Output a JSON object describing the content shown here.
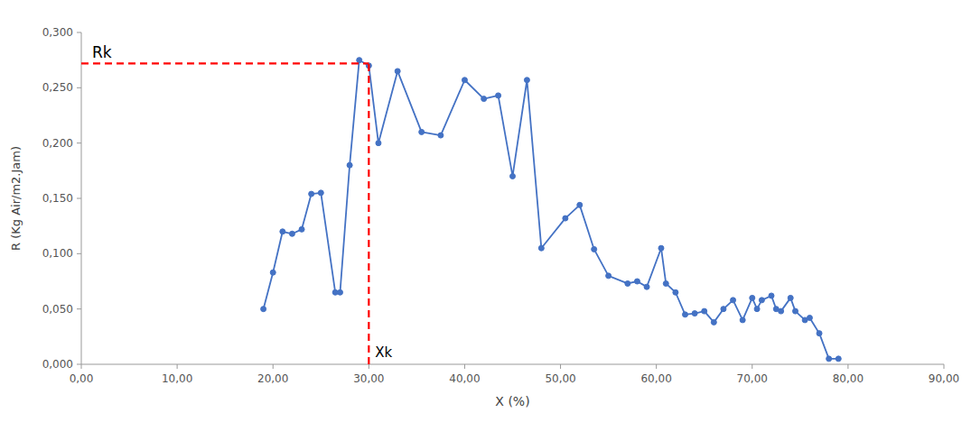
{
  "chart_data": {
    "type": "line",
    "x": [
      19.0,
      20.0,
      21.0,
      22.0,
      23.0,
      24.0,
      25.0,
      26.5,
      27.0,
      28.0,
      29.0,
      30.0,
      31.0,
      33.0,
      35.5,
      37.5,
      40.0,
      42.0,
      43.5,
      45.0,
      46.5,
      48.0,
      50.5,
      52.0,
      53.5,
      55.0,
      57.0,
      58.0,
      59.0,
      60.5,
      61.0,
      62.0,
      63.0,
      64.0,
      65.0,
      66.0,
      67.0,
      68.0,
      69.0,
      70.0,
      70.5,
      71.0,
      72.0,
      72.5,
      73.0,
      74.0,
      74.5,
      75.5,
      76.0,
      77.0,
      78.0,
      79.0
    ],
    "series": [
      {
        "color": "#4472C4",
        "marker": "circle",
        "line_style": "solid",
        "values": [
          0.05,
          0.083,
          0.12,
          0.118,
          0.122,
          0.154,
          0.155,
          0.065,
          0.065,
          0.18,
          0.275,
          0.27,
          0.2,
          0.265,
          0.21,
          0.207,
          0.257,
          0.24,
          0.243,
          0.17,
          0.257,
          0.105,
          0.132,
          0.144,
          0.104,
          0.08,
          0.073,
          0.075,
          0.07,
          0.105,
          0.073,
          0.065,
          0.045,
          0.046,
          0.048,
          0.038,
          0.05,
          0.058,
          0.04,
          0.06,
          0.05,
          0.058,
          0.062,
          0.05,
          0.048,
          0.06,
          0.048,
          0.04,
          0.042,
          0.028,
          0.005,
          0.005
        ]
      }
    ],
    "reference_lines": [
      {
        "x": 30.0,
        "y": 0.272,
        "color": "#FF0000",
        "line_style": "dashed"
      }
    ],
    "annotations": [
      {
        "text": "Rk"
      },
      {
        "text": "Xk"
      }
    ],
    "xlabel": "X (%)",
    "ylabel": "R (Kg Air/m2.Jam)",
    "xlim": [
      0,
      90
    ],
    "ylim": [
      0,
      0.3
    ],
    "xticks": [
      {
        "value": 0,
        "label": "0,00"
      },
      {
        "value": 10,
        "label": "10,00"
      },
      {
        "value": 20,
        "label": "20,00"
      },
      {
        "value": 30,
        "label": "30,00"
      },
      {
        "value": 40,
        "label": "40,00"
      },
      {
        "value": 50,
        "label": "50,00"
      },
      {
        "value": 60,
        "label": "60,00"
      },
      {
        "value": 70,
        "label": "70,00"
      },
      {
        "value": 80,
        "label": "80,00"
      },
      {
        "value": 90,
        "label": "90,00"
      }
    ],
    "yticks": [
      {
        "value": 0,
        "label": "0,000"
      },
      {
        "value": 0.05,
        "label": "0,050"
      },
      {
        "value": 0.1,
        "label": "0,100"
      },
      {
        "value": 0.15,
        "label": "0,150"
      },
      {
        "value": 0.2,
        "label": "0,200"
      },
      {
        "value": 0.25,
        "label": "0,250"
      },
      {
        "value": 0.3,
        "label": "0,300"
      }
    ],
    "grid": false
  }
}
